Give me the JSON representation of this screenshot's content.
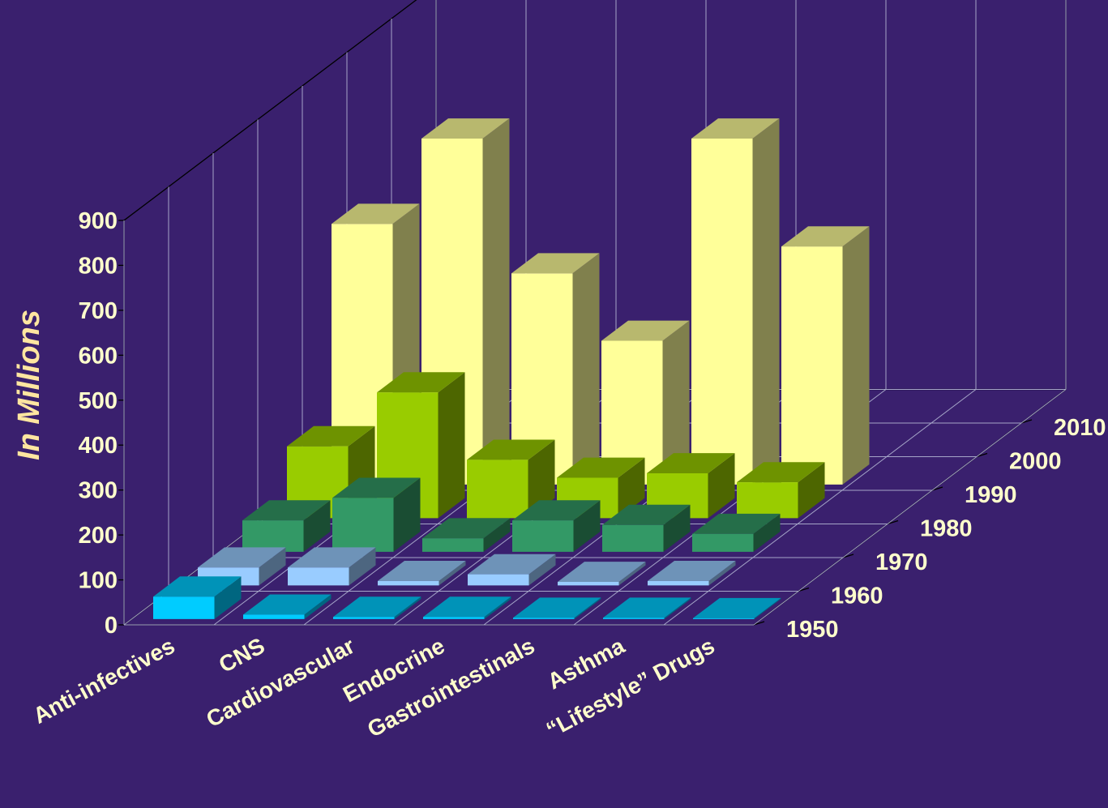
{
  "chart_data": {
    "type": "bar",
    "subtype": "3d-clustered-depth",
    "ylabel": "In Millions",
    "ylim": [
      0,
      900
    ],
    "yticks": [
      "0",
      "100",
      "200",
      "300",
      "400",
      "500",
      "600",
      "700",
      "800",
      "900"
    ],
    "categories": [
      "Anti-infectives",
      "CNS",
      "Cardiovascular",
      "Endocrine",
      "Gastrointestinals",
      "Asthma",
      "“Lifestyle” Drugs"
    ],
    "depth_labels": [
      "1950",
      "1960",
      "1970",
      "1980",
      "1990",
      "2000",
      "2010"
    ],
    "series": [
      {
        "name": "1950",
        "color": "#00ccff",
        "values": [
          50,
          10,
          5,
          5,
          3,
          3,
          2
        ]
      },
      {
        "name": "1960",
        "color": "#99ccff",
        "values": [
          40,
          40,
          10,
          25,
          8,
          10,
          0
        ]
      },
      {
        "name": "1970",
        "color": "#339966",
        "values": [
          70,
          120,
          30,
          70,
          60,
          40,
          0
        ]
      },
      {
        "name": "1980",
        "color": "#99cc00",
        "values": [
          160,
          280,
          130,
          90,
          100,
          80,
          0
        ]
      },
      {
        "name": "1990",
        "color": "#ffff99",
        "values": [
          580,
          770,
          470,
          320,
          770,
          530,
          0
        ]
      },
      {
        "name": "2000",
        "color": "#3a206e",
        "values": [
          0,
          0,
          0,
          0,
          0,
          0,
          0
        ]
      },
      {
        "name": "2010",
        "color": "#3a206e",
        "values": [
          0,
          0,
          0,
          0,
          0,
          0,
          0
        ]
      }
    ],
    "grid": true,
    "legend": "none",
    "colors": {
      "background": "#3a206e",
      "text": "#ffffcc",
      "ylabel": "#ffe6a0",
      "grid": "#a5a5c8",
      "axis": "#000000"
    }
  }
}
